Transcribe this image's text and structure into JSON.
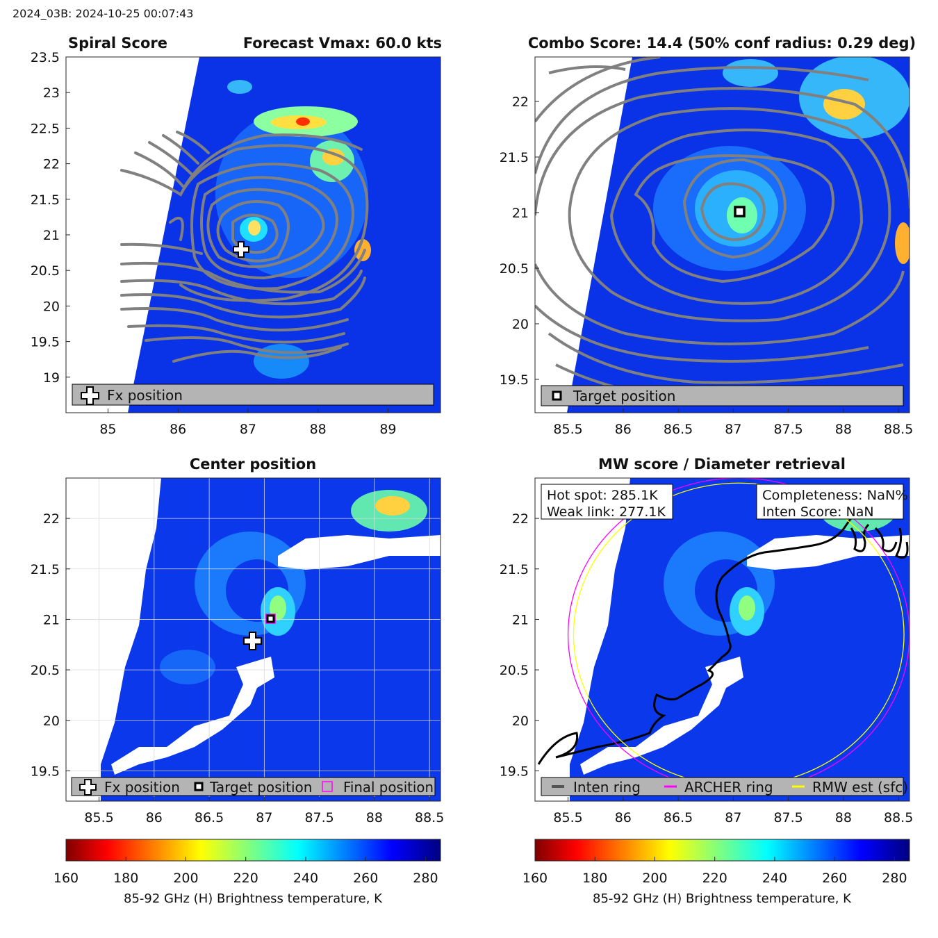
{
  "header": "2024_03B: 2024-10-25 00:07:43",
  "colorbar": {
    "ticks": [
      160,
      180,
      200,
      220,
      240,
      260,
      280
    ],
    "range": [
      160,
      285
    ],
    "label": "85-92 GHz (H) Brightness temperature, K"
  },
  "chart_data": [
    {
      "type": "heatmap",
      "id": "spiral",
      "title_left": "Spiral Score",
      "title_right": "Forecast Vmax: 60.0 kts",
      "xlim": [
        84.4,
        89.75
      ],
      "ylim": [
        18.5,
        23.5
      ],
      "xticks": [
        85,
        86,
        87,
        88,
        89
      ],
      "yticks": [
        19,
        19.5,
        20,
        20.5,
        21,
        21.5,
        22,
        22.5,
        23,
        23.5
      ],
      "markers": [
        {
          "type": "plus",
          "label": "Fx position",
          "x": 86.88,
          "y": 20.8
        }
      ],
      "legend": [
        "Fx position"
      ]
    },
    {
      "type": "heatmap",
      "id": "combo",
      "title": "Combo Score: 14.4  (50% conf radius: 0.29 deg)",
      "xlim": [
        85.2,
        88.6
      ],
      "ylim": [
        19.2,
        22.4
      ],
      "xticks": [
        85.5,
        86,
        86.5,
        87,
        87.5,
        88,
        88.5
      ],
      "yticks": [
        19.5,
        20,
        20.5,
        21,
        21.5,
        22
      ],
      "markers": [
        {
          "type": "square",
          "label": "Target position",
          "x": 87.05,
          "y": 21.0
        }
      ],
      "legend": [
        "Target position"
      ]
    },
    {
      "type": "heatmap",
      "id": "center",
      "title": "Center position",
      "xlim": [
        85.2,
        88.6
      ],
      "ylim": [
        19.2,
        22.4
      ],
      "xticks": [
        85.5,
        86,
        86.5,
        87,
        87.5,
        88,
        88.5
      ],
      "yticks": [
        19.5,
        20,
        20.5,
        21,
        21.5,
        22
      ],
      "markers": [
        {
          "type": "plus",
          "label": "Fx position",
          "x": 86.88,
          "y": 20.8
        },
        {
          "type": "square",
          "label": "Target position",
          "x": 87.05,
          "y": 21.0
        },
        {
          "type": "final",
          "label": "Final position",
          "x": 87.05,
          "y": 21.0
        }
      ],
      "legend": [
        "Fx position",
        "Target position",
        "Final position"
      ]
    },
    {
      "type": "heatmap",
      "id": "mw",
      "title": "MW score / Diameter retrieval",
      "xlim": [
        85.2,
        88.6
      ],
      "ylim": [
        19.2,
        22.4
      ],
      "xticks": [
        85.5,
        86,
        86.5,
        87,
        87.5,
        88,
        88.5
      ],
      "yticks": [
        19.5,
        20,
        20.5,
        21,
        21.5,
        22
      ],
      "info_left": [
        "Hot spot: 285.1K",
        "Weak link: 277.1K"
      ],
      "info_right": [
        "Completeness: NaN%",
        "Inten Score: NaN"
      ],
      "legend": [
        {
          "label": "Inten ring",
          "color": "#555555"
        },
        {
          "label": "ARCHER ring",
          "color": "#ff00ff"
        },
        {
          "label": "RMW est (sfc)",
          "color": "#ffff00"
        }
      ],
      "rings": [
        {
          "name": "ARCHER ring",
          "color": "#ff00ff",
          "cx": 87.05,
          "cy": 20.85,
          "r": 1.55
        },
        {
          "name": "RMW est (sfc)",
          "color": "#ffff00",
          "cx": 87.05,
          "cy": 20.85,
          "r": 1.5
        }
      ]
    }
  ]
}
